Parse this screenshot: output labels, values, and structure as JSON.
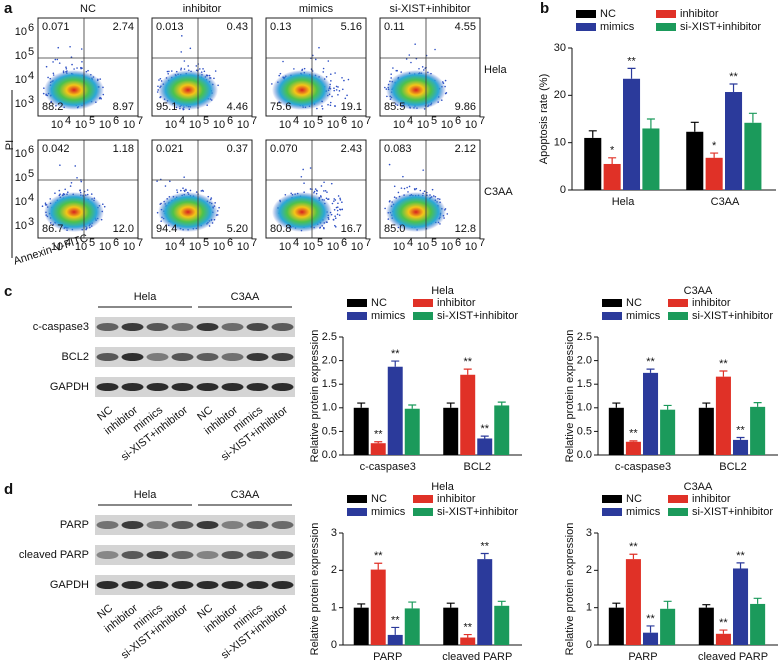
{
  "panel_labels": [
    "a",
    "b",
    "c",
    "d"
  ],
  "flow": {
    "columns": [
      "NC",
      "inhibitor",
      "mimics",
      "si-XIST+inhibitor"
    ],
    "rows": [
      "Hela",
      "C3AA"
    ],
    "y_label": "PI",
    "x_label": "Annexin V-FITC",
    "tick_base": "10",
    "xtick_exponents": [
      "4",
      "5",
      "6",
      "7"
    ],
    "ytick_exponents": [
      "3",
      "4",
      "5",
      "6"
    ],
    "quadrants": [
      [
        [
          "0.071",
          "2.74",
          "88.2",
          "8.97"
        ],
        [
          "0.013",
          "0.43",
          "95.1",
          "4.46"
        ],
        [
          "0.13",
          "5.16",
          "75.6",
          "19.1"
        ],
        [
          "0.11",
          "4.55",
          "85.5",
          "9.86"
        ]
      ],
      [
        [
          "0.042",
          "1.18",
          "86.7",
          "12.0"
        ],
        [
          "0.021",
          "0.37",
          "94.4",
          "5.20"
        ],
        [
          "0.070",
          "2.43",
          "80.8",
          "16.7"
        ],
        [
          "0.083",
          "2.12",
          "85.0",
          "12.8"
        ]
      ]
    ]
  },
  "blots": [
    {
      "groups": [
        "Hela",
        "C3AA"
      ],
      "rows": [
        "c-caspase3",
        "BCL2",
        "GAPDH"
      ],
      "lanes": [
        "NC",
        "inhibitor",
        "mimics",
        "si-XIST+inhibitor"
      ]
    },
    {
      "groups": [
        "Hela",
        "C3AA"
      ],
      "rows": [
        "PARP",
        "cleaved PARP",
        "GAPDH"
      ],
      "lanes": [
        "NC",
        "inhibitor",
        "mimics",
        "si-XIST+inhibitor"
      ]
    }
  ],
  "chart_data": [
    {
      "type": "bar",
      "y_label": "Apoptosis rate (%)",
      "categories": [
        "Hela",
        "C3AA"
      ],
      "ylim": [
        0,
        30
      ],
      "yticks": [
        0,
        10,
        20,
        30
      ],
      "series": [
        {
          "name": "NC",
          "color": "#000000",
          "values": [
            11,
            12.3
          ],
          "errors": [
            1.5,
            2
          ],
          "annotations": [
            null,
            null
          ]
        },
        {
          "name": "inhibitor",
          "color": "#e03127",
          "values": [
            5.5,
            6.8
          ],
          "errors": [
            1.3,
            1
          ],
          "annotations": [
            "*",
            "*"
          ]
        },
        {
          "name": "mimics",
          "color": "#2b3a9b",
          "values": [
            23.5,
            20.7
          ],
          "errors": [
            2.2,
            1.7
          ],
          "annotations": [
            "**",
            "**"
          ]
        },
        {
          "name": "si-XIST+inhibitor",
          "color": "#1b9a5b",
          "values": [
            13,
            14.2
          ],
          "errors": [
            2,
            2
          ],
          "annotations": [
            null,
            null
          ]
        }
      ]
    },
    {
      "type": "bar",
      "title": "Hela",
      "y_label": "Relative protein expression",
      "categories": [
        "c-caspase3",
        "BCL2"
      ],
      "ylim": [
        0,
        2.5
      ],
      "yticks": [
        {
          "value": 0,
          "label": "0.0"
        },
        {
          "value": 0.5,
          "label": "0.5"
        },
        {
          "value": 1,
          "label": "1.0"
        },
        {
          "value": 1.5,
          "label": "1.5"
        },
        {
          "value": 2,
          "label": "2.0"
        },
        {
          "value": 2.5,
          "label": "2.5"
        }
      ],
      "series": [
        {
          "name": "NC",
          "color": "#000000",
          "values": [
            1.0,
            1.0
          ],
          "errors": [
            0.1,
            0.1
          ],
          "annotations": [
            null,
            null
          ]
        },
        {
          "name": "inhibitor",
          "color": "#e03127",
          "values": [
            0.25,
            1.7
          ],
          "errors": [
            0.03,
            0.12
          ],
          "annotations": [
            "**",
            "**"
          ]
        },
        {
          "name": "mimics",
          "color": "#2b3a9b",
          "values": [
            1.87,
            0.35
          ],
          "errors": [
            0.12,
            0.05
          ],
          "annotations": [
            "**",
            "**"
          ]
        },
        {
          "name": "si-XIST+inhibitor",
          "color": "#1b9a5b",
          "values": [
            0.98,
            1.05
          ],
          "errors": [
            0.08,
            0.07
          ],
          "annotations": [
            null,
            null
          ]
        }
      ]
    },
    {
      "type": "bar",
      "title": "C3AA",
      "y_label": "Relative protein expression",
      "categories": [
        "c-caspase3",
        "BCL2"
      ],
      "ylim": [
        0,
        2.5
      ],
      "yticks": [
        {
          "value": 0,
          "label": "0.0"
        },
        {
          "value": 0.5,
          "label": "0.5"
        },
        {
          "value": 1,
          "label": "1.0"
        },
        {
          "value": 1.5,
          "label": "1.5"
        },
        {
          "value": 2,
          "label": "2.0"
        },
        {
          "value": 2.5,
          "label": "2.5"
        }
      ],
      "series": [
        {
          "name": "NC",
          "color": "#000000",
          "values": [
            1.0,
            1.0
          ],
          "errors": [
            0.1,
            0.1
          ],
          "annotations": [
            null,
            null
          ]
        },
        {
          "name": "inhibitor",
          "color": "#e03127",
          "values": [
            0.28,
            1.66
          ],
          "errors": [
            0.02,
            0.12
          ],
          "annotations": [
            "**",
            "**"
          ]
        },
        {
          "name": "mimics",
          "color": "#2b3a9b",
          "values": [
            1.74,
            0.32
          ],
          "errors": [
            0.08,
            0.05
          ],
          "annotations": [
            "**",
            "**"
          ]
        },
        {
          "name": "si-XIST+inhibitor",
          "color": "#1b9a5b",
          "values": [
            0.96,
            1.02
          ],
          "errors": [
            0.09,
            0.09
          ],
          "annotations": [
            null,
            null
          ]
        }
      ]
    },
    {
      "type": "bar",
      "title": "Hela",
      "y_label": "Relative protein expression",
      "categories": [
        "PARP",
        "cleaved PARP"
      ],
      "ylim": [
        0,
        3
      ],
      "yticks": [
        0,
        1,
        2,
        3
      ],
      "series": [
        {
          "name": "NC",
          "color": "#000000",
          "values": [
            1.0,
            1.0
          ],
          "errors": [
            0.1,
            0.12
          ],
          "annotations": [
            null,
            null
          ]
        },
        {
          "name": "inhibitor",
          "color": "#e03127",
          "values": [
            2.02,
            0.2
          ],
          "errors": [
            0.17,
            0.08
          ],
          "annotations": [
            "**",
            "**"
          ]
        },
        {
          "name": "mimics",
          "color": "#2b3a9b",
          "values": [
            0.27,
            2.3
          ],
          "errors": [
            0.2,
            0.15
          ],
          "annotations": [
            "**",
            "**"
          ]
        },
        {
          "name": "si-XIST+inhibitor",
          "color": "#1b9a5b",
          "values": [
            0.98,
            1.05
          ],
          "errors": [
            0.17,
            0.12
          ],
          "annotations": [
            null,
            null
          ]
        }
      ]
    },
    {
      "type": "bar",
      "title": "C3AA",
      "y_label": "Relative protein expression",
      "categories": [
        "PARP",
        "cleaved PARP"
      ],
      "ylim": [
        0,
        3
      ],
      "yticks": [
        0,
        1,
        2,
        3
      ],
      "series": [
        {
          "name": "NC",
          "color": "#000000",
          "values": [
            1.0,
            1.0
          ],
          "errors": [
            0.12,
            0.08
          ],
          "annotations": [
            null,
            null
          ]
        },
        {
          "name": "inhibitor",
          "color": "#e03127",
          "values": [
            2.3,
            0.3
          ],
          "errors": [
            0.13,
            0.1
          ],
          "annotations": [
            "**",
            "**"
          ]
        },
        {
          "name": "mimics",
          "color": "#2b3a9b",
          "values": [
            0.33,
            2.05
          ],
          "errors": [
            0.18,
            0.15
          ],
          "annotations": [
            "**",
            "**"
          ]
        },
        {
          "name": "si-XIST+inhibitor",
          "color": "#1b9a5b",
          "values": [
            0.97,
            1.1
          ],
          "errors": [
            0.2,
            0.15
          ],
          "annotations": [
            null,
            null
          ]
        }
      ]
    }
  ]
}
